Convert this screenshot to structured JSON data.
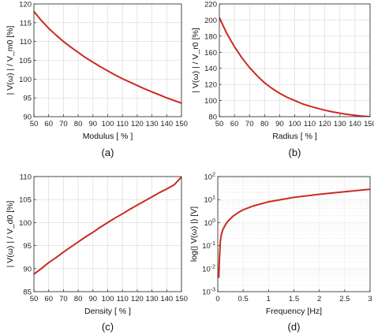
{
  "chart_data": [
    {
      "type": "line",
      "panel": "(a)",
      "xlabel": "Modulus [ % ]",
      "ylabel": "| V(ω) | / V_m0 [%]",
      "xlim": [
        50,
        150
      ],
      "ylim": [
        90,
        120
      ],
      "xticks": [
        "50",
        "60",
        "70",
        "80",
        "90",
        "100",
        "110",
        "120",
        "130",
        "140",
        "150"
      ],
      "yticks": [
        "90",
        "95",
        "100",
        "105",
        "110",
        "115",
        "120"
      ],
      "grid": true,
      "color": "#cc2a1f",
      "x": [
        50,
        55,
        60,
        65,
        70,
        75,
        80,
        85,
        90,
        95,
        100,
        105,
        110,
        115,
        120,
        125,
        130,
        135,
        140,
        145,
        150
      ],
      "y": [
        118.0,
        115.6,
        113.5,
        111.7,
        110.0,
        108.5,
        107.1,
        105.7,
        104.5,
        103.3,
        102.2,
        101.1,
        100.1,
        99.2,
        98.3,
        97.4,
        96.6,
        95.8,
        95.0,
        94.3,
        93.6
      ]
    },
    {
      "type": "line",
      "panel": "(b)",
      "xlabel": "Radius [ % ]",
      "ylabel": "| V(ω) | / V_r0 [%]",
      "xlim": [
        50,
        150
      ],
      "ylim": [
        80,
        220
      ],
      "xticks": [
        "50",
        "60",
        "70",
        "80",
        "90",
        "100",
        "110",
        "120",
        "130",
        "140",
        "150"
      ],
      "yticks": [
        "80",
        "100",
        "120",
        "140",
        "160",
        "180",
        "200",
        "220"
      ],
      "grid": true,
      "color": "#cc2a1f",
      "x": [
        50,
        55,
        60,
        65,
        70,
        75,
        80,
        85,
        90,
        95,
        100,
        105,
        110,
        115,
        120,
        125,
        130,
        135,
        140,
        145,
        150
      ],
      "y": [
        203,
        183,
        167,
        153,
        141,
        131,
        122,
        115,
        109,
        104,
        100,
        96,
        93,
        90.5,
        88,
        86,
        84.3,
        82.8,
        81.6,
        80.6,
        80.0
      ]
    },
    {
      "type": "line",
      "panel": "(c)",
      "xlabel": "Density [ % ]",
      "ylabel": "| V(ω) | / V_d0 [%]",
      "xlim": [
        50,
        150
      ],
      "ylim": [
        85,
        110
      ],
      "xticks": [
        "50",
        "60",
        "70",
        "80",
        "90",
        "100",
        "110",
        "120",
        "130",
        "140",
        "150"
      ],
      "yticks": [
        "85",
        "90",
        "95",
        "100",
        "105",
        "110"
      ],
      "grid": true,
      "color": "#cc2a1f",
      "x": [
        50,
        55,
        60,
        65,
        70,
        75,
        80,
        85,
        90,
        95,
        100,
        105,
        110,
        115,
        120,
        125,
        130,
        135,
        140,
        145,
        150
      ],
      "y": [
        88.8,
        90.0,
        91.3,
        92.4,
        93.6,
        94.7,
        95.8,
        96.9,
        97.9,
        99.0,
        100.0,
        101.0,
        101.9,
        102.9,
        103.8,
        104.7,
        105.6,
        106.5,
        107.3,
        108.2,
        109.9
      ]
    },
    {
      "type": "line",
      "panel": "(d)",
      "xlabel": "Frequency [Hz]",
      "ylabel": "log(| V(ω) |) [V]",
      "xlim": [
        0,
        3
      ],
      "ylim_log10": [
        -3,
        2
      ],
      "yscale": "log",
      "xticks": [
        "0",
        "0.5",
        "1",
        "1.5",
        "2",
        "2.5",
        "3"
      ],
      "yticks_exp": [
        "-3",
        "-2",
        "-1",
        "0",
        "1",
        "2"
      ],
      "grid": true,
      "color": "#cc2a1f",
      "x": [
        0.02,
        0.03,
        0.05,
        0.07,
        0.1,
        0.15,
        0.2,
        0.3,
        0.4,
        0.5,
        0.7,
        1.0,
        1.5,
        2.0,
        2.5,
        3.0
      ],
      "y": [
        0.004,
        0.02,
        0.15,
        0.3,
        0.5,
        0.8,
        1.15,
        1.9,
        2.7,
        3.6,
        5.3,
        8.0,
        12.5,
        17.0,
        22.0,
        28.0
      ]
    }
  ]
}
